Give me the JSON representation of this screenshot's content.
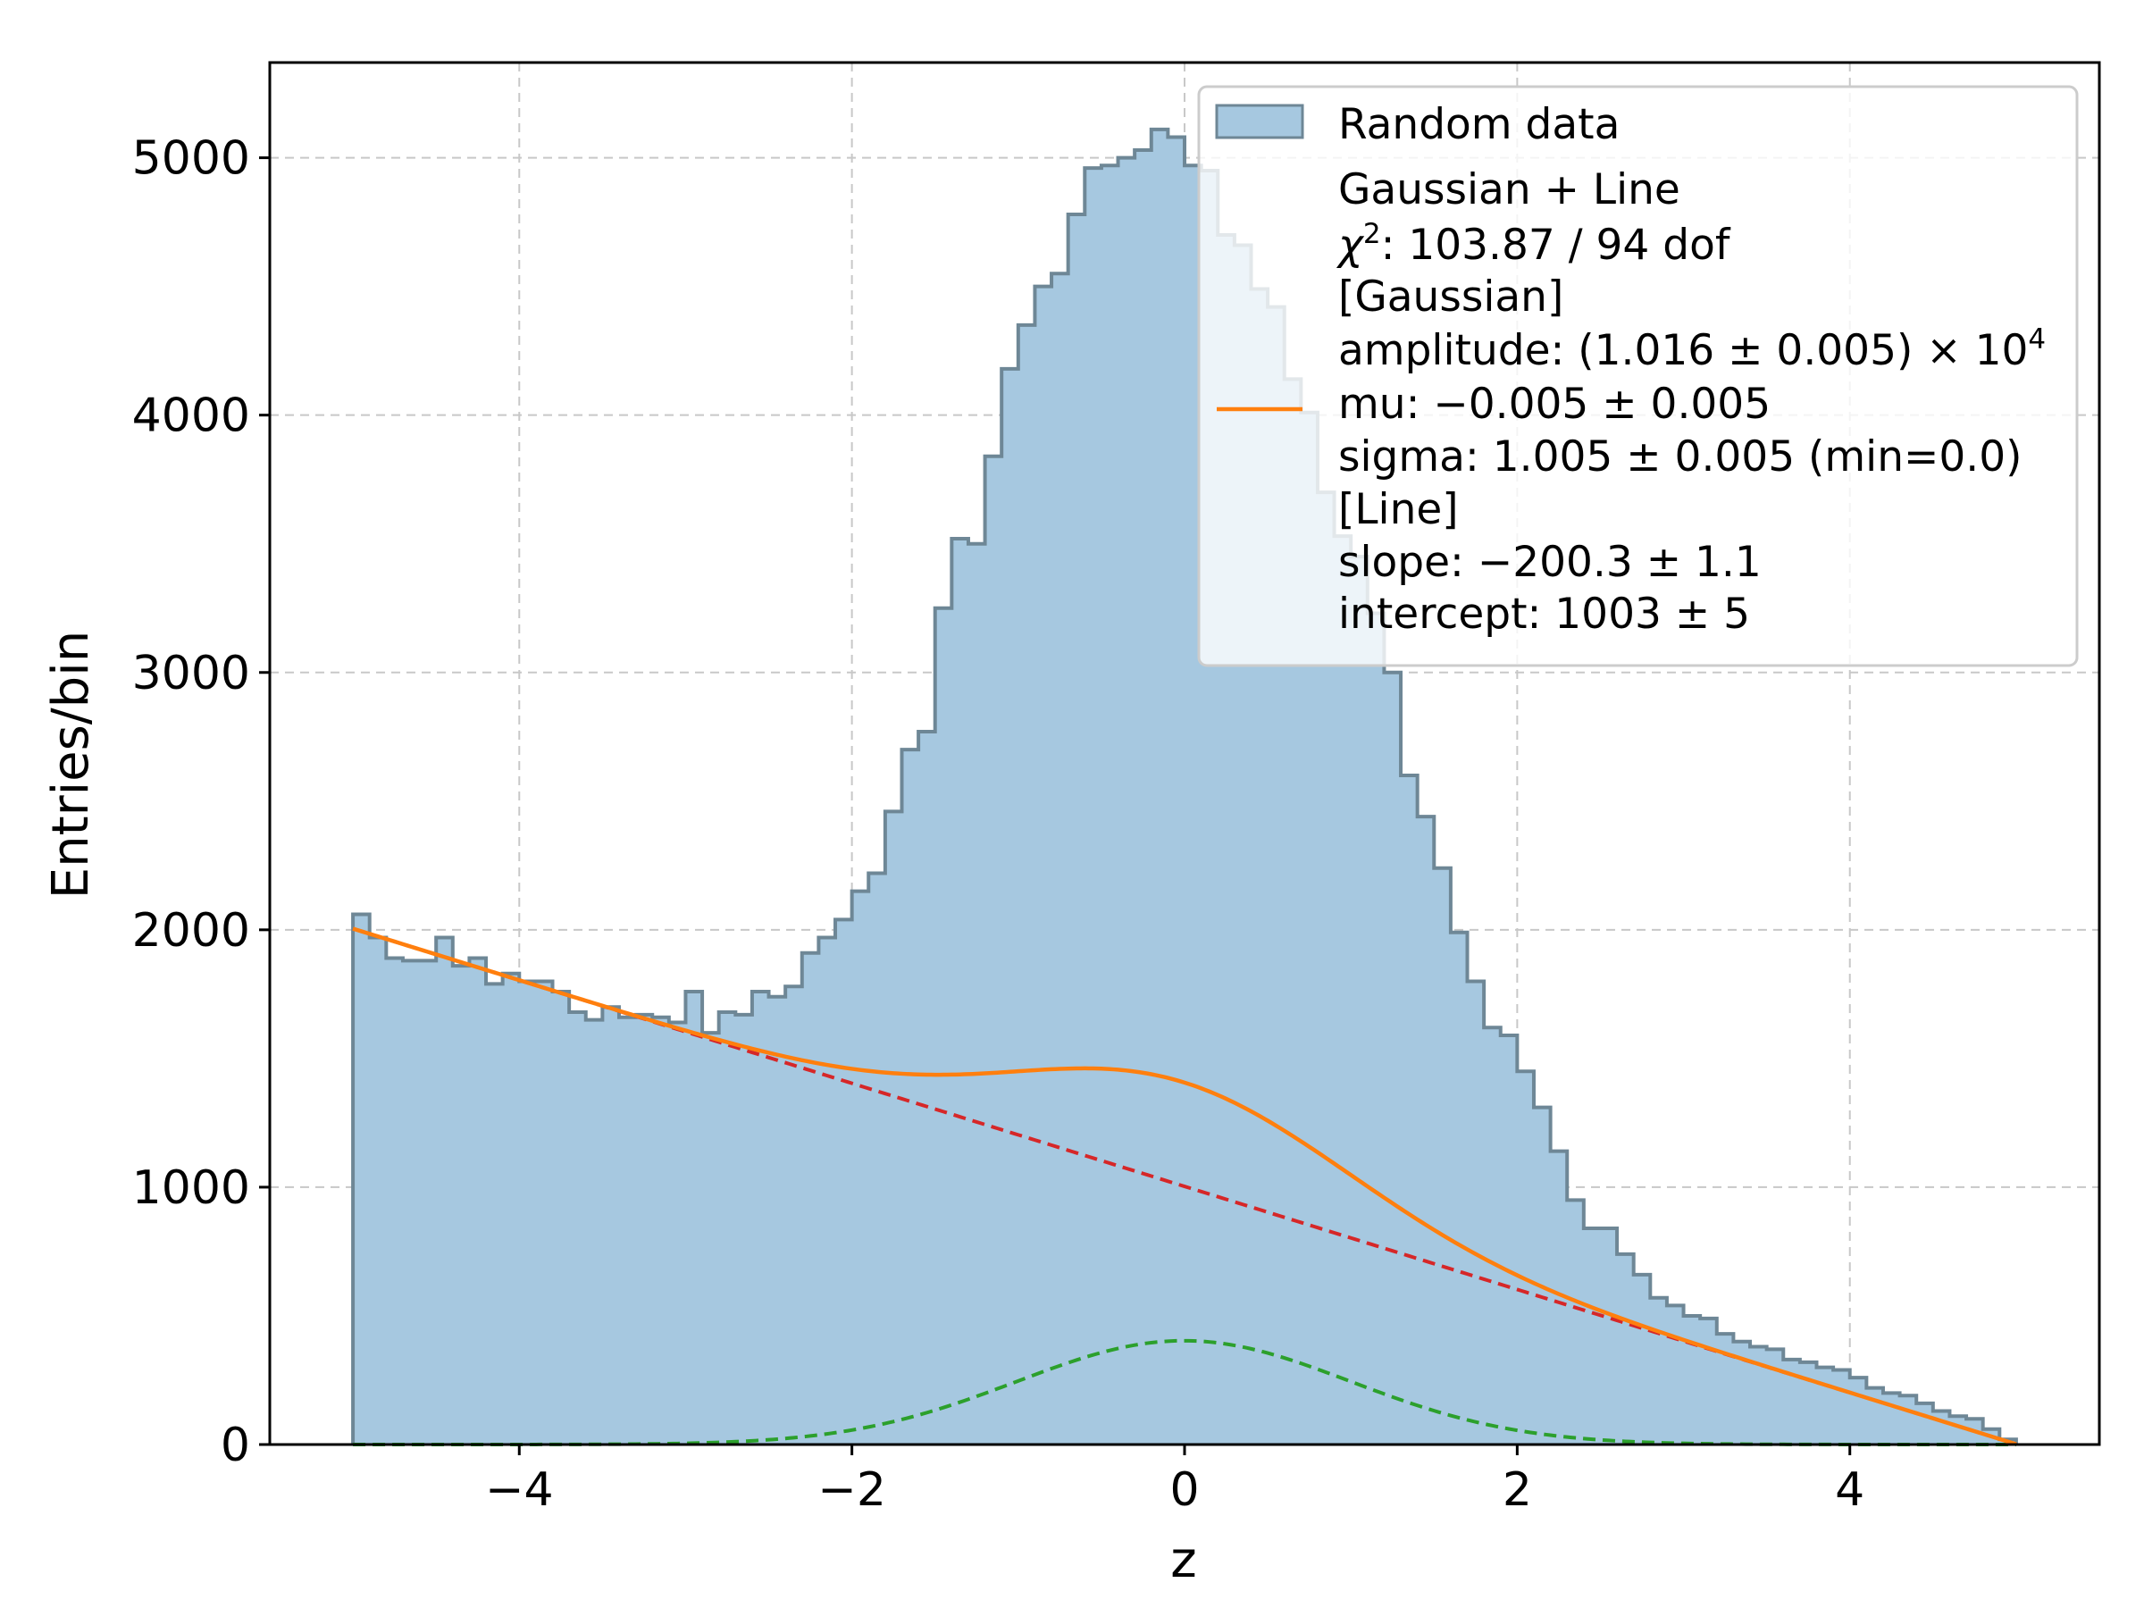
{
  "chart_data": {
    "type": "histogram",
    "xlabel": "z",
    "ylabel": "Entries/bin",
    "xlim": [
      -5.5,
      5.5
    ],
    "ylim": [
      0,
      5370
    ],
    "x_ticks": [
      -4,
      -2,
      0,
      2,
      4
    ],
    "x_tick_labels": [
      "−4",
      "−2",
      "0",
      "2",
      "4"
    ],
    "y_ticks": [
      0,
      1000,
      2000,
      3000,
      4000,
      5000
    ],
    "y_tick_labels": [
      "0",
      "1000",
      "2000",
      "3000",
      "4000",
      "5000"
    ],
    "grid": true,
    "legend_position": "top-right",
    "bin_range": [
      -5,
      5
    ],
    "bins": 100,
    "histogram": {
      "name": "Random data",
      "counts": [
        2060,
        1970,
        1890,
        1880,
        1880,
        1970,
        1860,
        1890,
        1790,
        1830,
        1800,
        1800,
        1760,
        1680,
        1650,
        1700,
        1660,
        1670,
        1660,
        1640,
        1760,
        1600,
        1680,
        1670,
        1760,
        1740,
        1780,
        1910,
        1970,
        2040,
        2150,
        2220,
        2460,
        2700,
        2770,
        3250,
        3520,
        3500,
        3840,
        4180,
        4350,
        4500,
        4550,
        4780,
        4960,
        4970,
        5000,
        5030,
        5110,
        5080,
        4970,
        4950,
        4700,
        4660,
        4490,
        4420,
        4140,
        4010,
        3700,
        3530,
        3450,
        3230,
        3000,
        2600,
        2440,
        2240,
        1990,
        1800,
        1620,
        1590,
        1450,
        1310,
        1140,
        950,
        840,
        840,
        740,
        660,
        570,
        540,
        500,
        490,
        430,
        400,
        380,
        370,
        330,
        320,
        300,
        290,
        260,
        220,
        200,
        190,
        160,
        130,
        110,
        100,
        60,
        20
      ],
      "color": "#a6c8e0",
      "edge_color": "#6e8796"
    },
    "fit": {
      "name": "Gaussian + Line",
      "color": "#ff7f0e",
      "components": [
        {
          "name": "Gaussian",
          "color": "#2ca02c",
          "style": "dashed"
        },
        {
          "name": "Line",
          "color": "#d62728",
          "style": "dashed"
        }
      ],
      "chi2_label": "χ",
      "chi2_sup": "2",
      "chi2_value": ": 103.87 / 94 dof",
      "gaussian_header": "[Gaussian]",
      "amplitude_label": "amplitude: (1.016 ± 0.005) × 10",
      "amplitude_exp": "4",
      "mu_label": "mu: −0.005 ± 0.005",
      "sigma_label": "sigma: 1.005 ± 0.005 (min=0.0)",
      "line_header": "[Line]",
      "slope_label": "slope: −200.3 ± 1.1",
      "intercept_label": "intercept: 1003 ± 5",
      "params": {
        "amplitude": 10160,
        "mu": -0.005,
        "sigma": 1.005,
        "slope": -200.3,
        "intercept": 1003
      }
    }
  }
}
